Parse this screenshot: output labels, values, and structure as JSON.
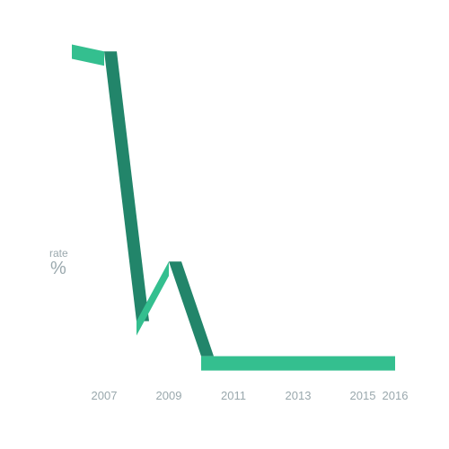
{
  "chart_data": {
    "type": "line",
    "style": "folded-ribbon",
    "ylabel": "rate",
    "yunit": "%",
    "x": [
      2006,
      2007,
      2008,
      2009,
      2010,
      2011,
      2012,
      2013,
      2014,
      2015,
      2016
    ],
    "x_tick_labels": [
      "2007",
      "2009",
      "2011",
      "2013",
      "2015",
      "2016"
    ],
    "series": [
      {
        "values": [
          95,
          93,
          16,
          33,
          6,
          6,
          6,
          6,
          6,
          6,
          6
        ]
      }
    ],
    "ylim": [
      0,
      100
    ],
    "grid": false,
    "colors": {
      "ribbon_face": "#34bf8f",
      "ribbon_fold": "#22856a",
      "tick_text": "#9aa8ad"
    }
  }
}
